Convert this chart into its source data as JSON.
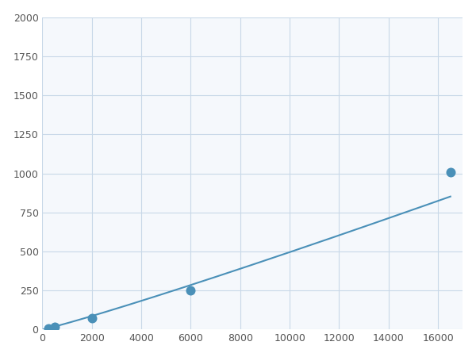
{
  "x": [
    250,
    500,
    2000,
    6000,
    16500
  ],
  "y": [
    10,
    20,
    75,
    250,
    1010
  ],
  "line_color": "#4a90b8",
  "marker_color": "#4a90b8",
  "marker_size": 5,
  "xlim": [
    0,
    17000
  ],
  "ylim": [
    0,
    2000
  ],
  "xticks": [
    0,
    2000,
    4000,
    6000,
    8000,
    10000,
    12000,
    14000,
    16000
  ],
  "yticks": [
    0,
    250,
    500,
    750,
    1000,
    1250,
    1500,
    1750,
    2000
  ],
  "grid_color": "#c8d8e8",
  "bg_color": "#f5f8fc",
  "fig_bg_color": "#ffffff"
}
